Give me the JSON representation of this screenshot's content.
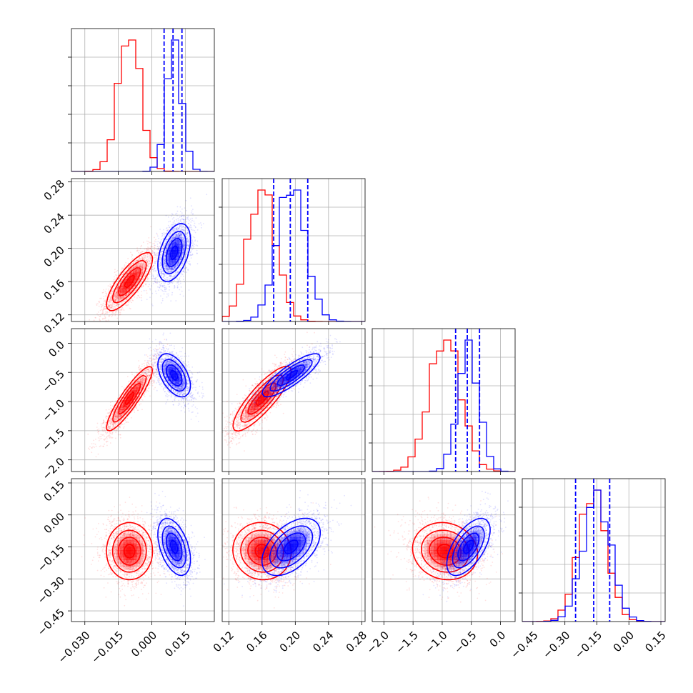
{
  "chart_data": {
    "type": "corner",
    "grid": true,
    "series_colors": [
      "#ff0000",
      "#0000ff"
    ],
    "parameters": [
      {
        "range": [
          -0.036,
          0.028
        ],
        "ticks": [
          -0.03,
          -0.015,
          0.0,
          0.015
        ],
        "tick_labels": [
          "−0.030",
          "−0.015",
          "0.000",
          "0.015"
        ]
      },
      {
        "range": [
          0.112,
          0.284
        ],
        "ticks": [
          0.12,
          0.16,
          0.2,
          0.24,
          0.28
        ],
        "tick_labels": [
          "0.12",
          "0.16",
          "0.20",
          "0.24",
          "0.28"
        ]
      },
      {
        "range": [
          -2.2,
          0.25
        ],
        "ticks": [
          -2.0,
          -1.5,
          -1.0,
          -0.5,
          0.0
        ],
        "tick_labels": [
          "−2.0",
          "−1.5",
          "−1.0",
          "−0.5",
          "0.0"
        ]
      },
      {
        "range": [
          -0.5,
          0.17
        ],
        "ticks": [
          -0.45,
          -0.3,
          -0.15,
          0.0,
          0.15
        ],
        "tick_labels": [
          "−0.45",
          "−0.30",
          "−0.15",
          "0.00",
          "0.15"
        ]
      }
    ],
    "posteriors": [
      {
        "color": "#ff0000",
        "mean": [
          -0.01,
          0.16,
          -0.95,
          -0.17
        ],
        "std": [
          0.005,
          0.017,
          0.27,
          0.065
        ],
        "corr": [
          [
            1,
            0.8,
            0.9,
            0.0
          ],
          [
            0.8,
            1,
            0.85,
            -0.05
          ],
          [
            0.9,
            0.85,
            1,
            -0.1
          ],
          [
            0.0,
            -0.05,
            -0.1,
            1
          ]
        ]
      },
      {
        "color": "#0000ff",
        "mean": [
          0.01,
          0.195,
          -0.55,
          -0.15
        ],
        "std": [
          0.0035,
          0.017,
          0.18,
          0.065
        ],
        "corr": [
          [
            1,
            0.45,
            -0.5,
            -0.45
          ],
          [
            0.45,
            1,
            0.85,
            0.5
          ],
          [
            -0.5,
            0.85,
            1,
            0.6
          ],
          [
            -0.45,
            0.5,
            0.6,
            1
          ]
        ]
      }
    ],
    "quantile_lines": [
      {
        "param": 0,
        "values": [
          0.0055,
          0.0095,
          0.0135
        ]
      },
      {
        "param": 1,
        "values": [
          0.174,
          0.194,
          0.215
        ]
      },
      {
        "param": 2,
        "values": [
          -0.77,
          -0.57,
          -0.36
        ]
      },
      {
        "param": 3,
        "values": [
          -0.25,
          -0.165,
          -0.09
        ]
      }
    ]
  }
}
